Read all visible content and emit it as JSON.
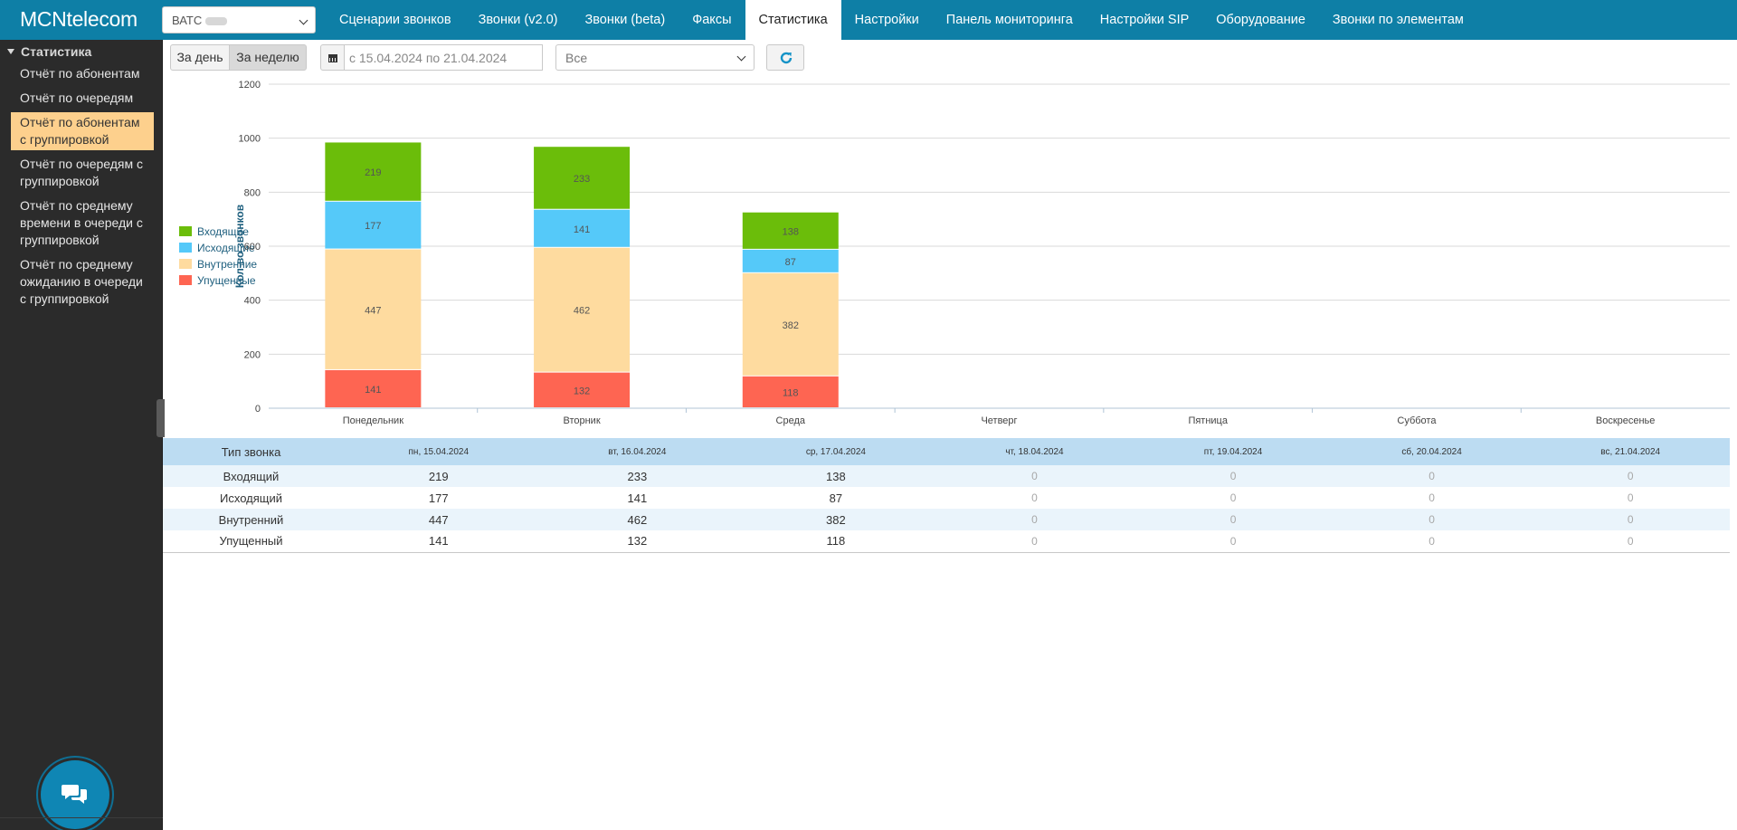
{
  "app": {
    "logo": "MCNtelecom",
    "vats_select": "ВАТС",
    "nav": [
      {
        "label": "Сценарии звонков",
        "active": false
      },
      {
        "label": "Звонки (v2.0)",
        "active": false
      },
      {
        "label": "Звонки (beta)",
        "active": false
      },
      {
        "label": "Факсы",
        "active": false
      },
      {
        "label": "Статистика",
        "active": true
      },
      {
        "label": "Настройки",
        "active": false
      },
      {
        "label": "Панель мониторинга",
        "active": false
      },
      {
        "label": "Настройки SIP",
        "active": false
      },
      {
        "label": "Оборудование",
        "active": false
      },
      {
        "label": "Звонки по элементам",
        "active": false
      }
    ]
  },
  "sidebar": {
    "heading": "Статистика",
    "items": [
      {
        "label": "Отчёт по абонентам",
        "active": false
      },
      {
        "label": "Отчёт по очередям",
        "active": false
      },
      {
        "label": "Отчёт по абонентам с группировкой",
        "active": true
      },
      {
        "label": "Отчёт по очередям с группировкой",
        "active": false
      },
      {
        "label": "Отчёт по среднему времени в очереди с группировкой",
        "active": false
      },
      {
        "label": "Отчёт по среднему ожиданию в очереди с группировкой",
        "active": false
      }
    ]
  },
  "toolbar": {
    "day_label": "За день",
    "week_label": "За неделю",
    "date_range": "с 15.04.2024 по 21.04.2024",
    "filter_value": "Все"
  },
  "chart_data": {
    "type": "bar",
    "stacked": true,
    "categories": [
      "Понедельник",
      "Вторник",
      "Среда",
      "Четверг",
      "Пятница",
      "Суббота",
      "Воскресенье"
    ],
    "series": [
      {
        "name": "Упущенные",
        "color": "#fe6552",
        "values": [
          141,
          132,
          118,
          0,
          0,
          0,
          0
        ]
      },
      {
        "name": "Внутренние",
        "color": "#fedb9f",
        "values": [
          447,
          462,
          382,
          0,
          0,
          0,
          0
        ]
      },
      {
        "name": "Исходящие",
        "color": "#55c9f9",
        "values": [
          177,
          141,
          87,
          0,
          0,
          0,
          0
        ]
      },
      {
        "name": "Входящие",
        "color": "#6bbd0a",
        "values": [
          219,
          233,
          138,
          0,
          0,
          0,
          0
        ]
      }
    ],
    "legend_order": [
      "Входящие",
      "Исходящие",
      "Внутренние",
      "Упущенные"
    ],
    "ylabel": "Кол-во звонков",
    "ylim": [
      0,
      1200
    ],
    "yticks": [
      0,
      200,
      400,
      600,
      800,
      1000,
      1200
    ],
    "grid": true,
    "legend": "left"
  },
  "table": {
    "type_header": "Тип звонка",
    "dates": [
      "пн, 15.04.2024",
      "вт, 16.04.2024",
      "ср, 17.04.2024",
      "чт, 18.04.2024",
      "пт, 19.04.2024",
      "сб, 20.04.2024",
      "вс, 21.04.2024"
    ],
    "rows": [
      {
        "type": "Входящий",
        "values": [
          219,
          233,
          138,
          0,
          0,
          0,
          0
        ]
      },
      {
        "type": "Исходящий",
        "values": [
          177,
          141,
          87,
          0,
          0,
          0,
          0
        ]
      },
      {
        "type": "Внутренний",
        "values": [
          447,
          462,
          382,
          0,
          0,
          0,
          0
        ]
      },
      {
        "type": "Упущенный",
        "values": [
          141,
          132,
          118,
          0,
          0,
          0,
          0
        ]
      }
    ]
  }
}
